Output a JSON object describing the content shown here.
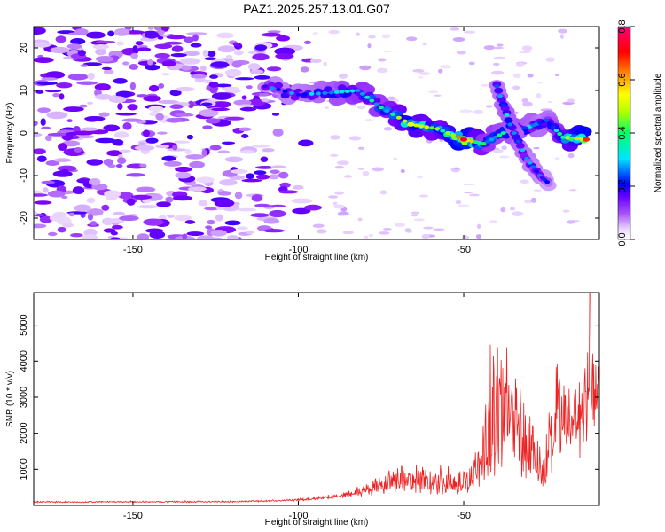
{
  "title": "PAZ1.2025.257.13.01.G07",
  "chart_data": [
    {
      "type": "heatmap",
      "xlabel": "Height of straight line (km)",
      "ylabel": "Frequency (Hz)",
      "xlim": [
        -180,
        -9
      ],
      "ylim": [
        -25,
        25
      ],
      "x_ticks": [
        -150,
        -100,
        -50
      ],
      "y_ticks": [
        -20,
        -10,
        0,
        10,
        20
      ],
      "colorbar": {
        "label": "Normalized spectral amplitude",
        "range": [
          0,
          0.8
        ],
        "ticks": [
          0.0,
          0.2,
          0.4,
          0.6,
          0.8
        ],
        "colors": [
          "#ffffff",
          "#d8b4fe",
          "#7c00ff",
          "#0000ff",
          "#00e5ff",
          "#00ff66",
          "#b4ff00",
          "#ffff00",
          "#ff8800",
          "#ff0000",
          "#ff0077"
        ]
      },
      "ridge": [
        {
          "x": -110,
          "f": 11,
          "a": 0.28
        },
        {
          "x": -100,
          "f": 9,
          "a": 0.3
        },
        {
          "x": -90,
          "f": 9.5,
          "a": 0.34
        },
        {
          "x": -82,
          "f": 10,
          "a": 0.4
        },
        {
          "x": -75,
          "f": 6,
          "a": 0.38
        },
        {
          "x": -66,
          "f": 2,
          "a": 0.55
        },
        {
          "x": -58,
          "f": 1,
          "a": 0.45
        },
        {
          "x": -50,
          "f": -1.5,
          "a": 0.75
        },
        {
          "x": -44,
          "f": -2.5,
          "a": 0.4
        },
        {
          "x": -38,
          "f": 0,
          "a": 0.36
        },
        {
          "x": -30,
          "f": 1.5,
          "a": 0.34
        },
        {
          "x": -25,
          "f": 3,
          "a": 0.3
        },
        {
          "x": -20,
          "f": -1,
          "a": 0.45
        },
        {
          "x": -13,
          "f": -1.5,
          "a": 0.7
        }
      ],
      "branch": [
        {
          "x": -40,
          "f": 11,
          "a": 0.3
        },
        {
          "x": -36,
          "f": 2,
          "a": 0.35
        },
        {
          "x": -31,
          "f": -6,
          "a": 0.3
        },
        {
          "x": -27,
          "f": -10,
          "a": 0.28
        },
        {
          "x": -24,
          "f": -12,
          "a": 0.25
        }
      ]
    },
    {
      "type": "line",
      "xlabel": "Height of straight line (km)",
      "ylabel": "SNR (10 * v/v)",
      "xlim": [
        -180,
        -9
      ],
      "ylim": [
        0,
        5900
      ],
      "x_ticks": [
        -150,
        -100,
        -50
      ],
      "y_ticks": [
        1000,
        2000,
        3000,
        4000,
        5000
      ],
      "color": "#ee2222",
      "envelope": [
        {
          "x": -180,
          "base": 80,
          "amp": 40
        },
        {
          "x": -120,
          "base": 90,
          "amp": 40
        },
        {
          "x": -100,
          "base": 130,
          "amp": 60
        },
        {
          "x": -88,
          "base": 220,
          "amp": 120
        },
        {
          "x": -80,
          "base": 300,
          "amp": 300
        },
        {
          "x": -70,
          "base": 450,
          "amp": 700
        },
        {
          "x": -60,
          "base": 400,
          "amp": 900
        },
        {
          "x": -50,
          "base": 420,
          "amp": 600
        },
        {
          "x": -45,
          "base": 700,
          "amp": 1200
        },
        {
          "x": -42,
          "base": 1300,
          "amp": 3800
        },
        {
          "x": -36,
          "base": 1500,
          "amp": 3500
        },
        {
          "x": -30,
          "base": 900,
          "amp": 2500
        },
        {
          "x": -26,
          "base": 500,
          "amp": 1300
        },
        {
          "x": -22,
          "base": 1500,
          "amp": 2700
        },
        {
          "x": -16,
          "base": 1500,
          "amp": 2800
        },
        {
          "x": -12,
          "base": 2500,
          "amp": 3300
        },
        {
          "x": -9,
          "base": 2400,
          "amp": 2000
        }
      ]
    }
  ]
}
